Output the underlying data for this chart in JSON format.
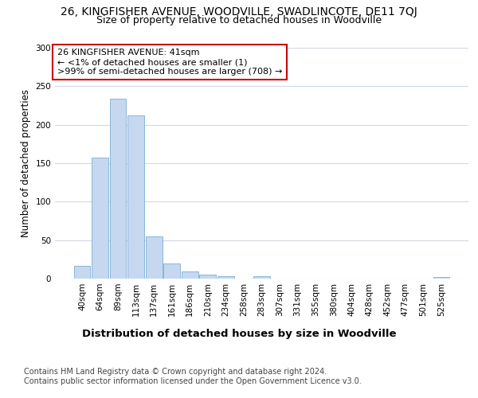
{
  "title1": "26, KINGFISHER AVENUE, WOODVILLE, SWADLINCOTE, DE11 7QJ",
  "title2": "Size of property relative to detached houses in Woodville",
  "xlabel": "Distribution of detached houses by size in Woodville",
  "ylabel": "Number of detached properties",
  "categories": [
    "40sqm",
    "64sqm",
    "89sqm",
    "113sqm",
    "137sqm",
    "161sqm",
    "186sqm",
    "210sqm",
    "234sqm",
    "258sqm",
    "283sqm",
    "307sqm",
    "331sqm",
    "355sqm",
    "380sqm",
    "404sqm",
    "428sqm",
    "452sqm",
    "477sqm",
    "501sqm",
    "525sqm"
  ],
  "values": [
    17,
    157,
    234,
    212,
    55,
    20,
    9,
    5,
    3,
    0,
    3,
    0,
    0,
    0,
    0,
    0,
    0,
    0,
    0,
    0,
    2
  ],
  "bar_color": "#c5d8f0",
  "bar_edge_color": "#7aafd4",
  "annotation_line1": "26 KINGFISHER AVENUE: 41sqm",
  "annotation_line2": "← <1% of detached houses are smaller (1)",
  "annotation_line3": ">99% of semi-detached houses are larger (708) →",
  "annotation_box_color": "#ffffff",
  "annotation_box_edge": "#cc0000",
  "ylim": [
    0,
    300
  ],
  "yticks": [
    0,
    50,
    100,
    150,
    200,
    250,
    300
  ],
  "background_color": "#ffffff",
  "grid_color": "#d0d8e8",
  "footer1": "Contains HM Land Registry data © Crown copyright and database right 2024.",
  "footer2": "Contains public sector information licensed under the Open Government Licence v3.0.",
  "title1_fontsize": 10,
  "title2_fontsize": 9,
  "xlabel_fontsize": 9.5,
  "ylabel_fontsize": 8.5,
  "tick_fontsize": 7.5,
  "annotation_fontsize": 8,
  "footer_fontsize": 7
}
